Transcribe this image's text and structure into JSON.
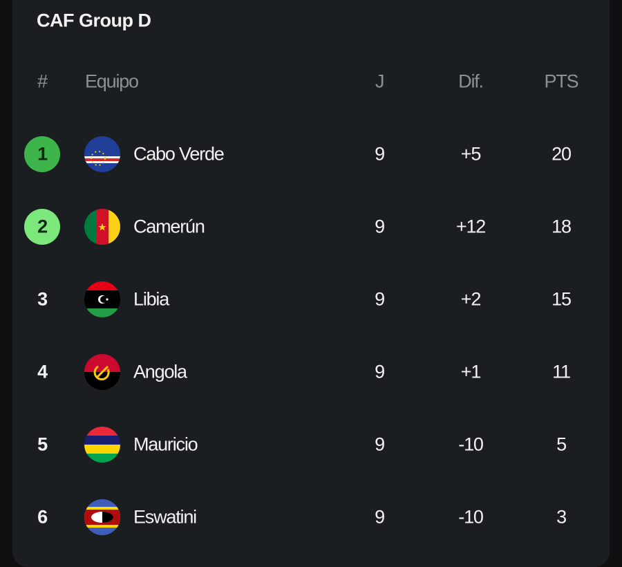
{
  "title": "CAF Group D",
  "table": {
    "header": [
      "#",
      "Equipo",
      "J",
      "Dif.",
      "PTS"
    ],
    "rows": [
      [
        "1",
        "Cabo Verde",
        "9",
        "+5",
        "20"
      ],
      [
        "2",
        "Camerún",
        "9",
        "+12",
        "18"
      ],
      [
        "3",
        "Libia",
        "9",
        "+2",
        "15"
      ],
      [
        "4",
        "Angola",
        "9",
        "+1",
        "11"
      ],
      [
        "5",
        "Mauricio",
        "9",
        "-10",
        "5"
      ],
      [
        "6",
        "Eswatini",
        "9",
        "-10",
        "3"
      ]
    ]
  }
}
